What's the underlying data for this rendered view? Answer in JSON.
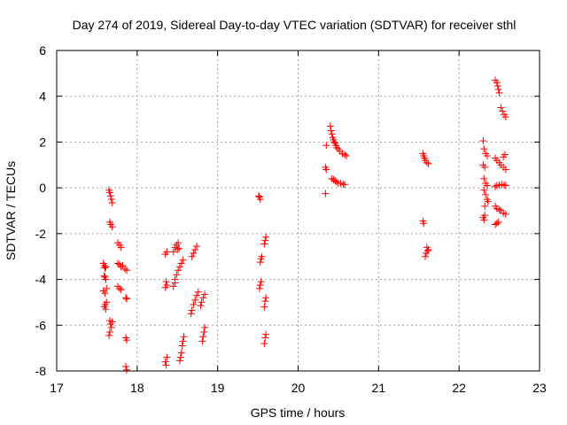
{
  "chart_data": {
    "type": "scatter",
    "title": "Day 274 of 2019, Sidereal Day-to-day VTEC variation (SDTVAR) for receiver sthl",
    "xlabel": "GPS time / hours",
    "ylabel": "SDTVAR / TECUs",
    "xlim": [
      17,
      23
    ],
    "ylim": [
      -8,
      6
    ],
    "xticks": [
      17,
      18,
      19,
      20,
      21,
      22,
      23
    ],
    "yticks": [
      -8,
      -6,
      -4,
      -2,
      0,
      2,
      4,
      6
    ],
    "grid": true,
    "marker": "+",
    "marker_color": "#ff0000",
    "series": [
      {
        "name": "SDTVAR",
        "points": [
          [
            17.58,
            -3.3
          ],
          [
            17.59,
            -3.4
          ],
          [
            17.6,
            -3.5
          ],
          [
            17.61,
            -3.45
          ],
          [
            17.6,
            -3.9
          ],
          [
            17.61,
            -4.0
          ],
          [
            17.59,
            -3.85
          ],
          [
            17.58,
            -4.5
          ],
          [
            17.6,
            -4.6
          ],
          [
            17.62,
            -4.4
          ],
          [
            17.6,
            -5.1
          ],
          [
            17.59,
            -5.2
          ],
          [
            17.61,
            -5.3
          ],
          [
            17.62,
            -5.0
          ],
          [
            17.65,
            -0.1
          ],
          [
            17.66,
            -0.2
          ],
          [
            17.67,
            -0.35
          ],
          [
            17.68,
            -0.5
          ],
          [
            17.69,
            -0.65
          ],
          [
            17.66,
            -1.5
          ],
          [
            17.67,
            -1.6
          ],
          [
            17.69,
            -1.7
          ],
          [
            17.66,
            -5.8
          ],
          [
            17.67,
            -5.95
          ],
          [
            17.68,
            -6.1
          ],
          [
            17.66,
            -6.3
          ],
          [
            17.65,
            -6.45
          ],
          [
            17.69,
            -5.85
          ],
          [
            17.76,
            -2.4
          ],
          [
            17.78,
            -2.5
          ],
          [
            17.8,
            -2.6
          ],
          [
            17.76,
            -3.3
          ],
          [
            17.78,
            -3.35
          ],
          [
            17.8,
            -3.45
          ],
          [
            17.82,
            -3.4
          ],
          [
            17.76,
            -4.3
          ],
          [
            17.78,
            -4.4
          ],
          [
            17.8,
            -4.45
          ],
          [
            17.85,
            -3.55
          ],
          [
            17.87,
            -3.6
          ],
          [
            17.86,
            -4.8
          ],
          [
            17.87,
            -4.85
          ],
          [
            17.86,
            -6.55
          ],
          [
            17.87,
            -6.65
          ],
          [
            17.86,
            -7.8
          ],
          [
            17.87,
            -7.95
          ],
          [
            18.35,
            -2.9
          ],
          [
            18.37,
            -2.8
          ],
          [
            18.36,
            -4.1
          ],
          [
            18.37,
            -4.25
          ],
          [
            18.35,
            -4.35
          ],
          [
            18.35,
            -7.6
          ],
          [
            18.36,
            -7.75
          ],
          [
            18.37,
            -7.4
          ],
          [
            18.45,
            -2.8
          ],
          [
            18.47,
            -2.6
          ],
          [
            18.49,
            -2.5
          ],
          [
            18.51,
            -2.4
          ],
          [
            18.5,
            -2.7
          ],
          [
            18.52,
            -2.65
          ],
          [
            18.47,
            -4.0
          ],
          [
            18.49,
            -3.8
          ],
          [
            18.51,
            -3.6
          ],
          [
            18.53,
            -3.45
          ],
          [
            18.55,
            -3.3
          ],
          [
            18.57,
            -3.15
          ],
          [
            18.45,
            -4.3
          ],
          [
            18.47,
            -4.15
          ],
          [
            18.56,
            -6.9
          ],
          [
            18.57,
            -6.7
          ],
          [
            18.58,
            -6.5
          ],
          [
            18.55,
            -7.2
          ],
          [
            18.54,
            -7.4
          ],
          [
            18.53,
            -7.55
          ],
          [
            18.68,
            -3.0
          ],
          [
            18.7,
            -2.85
          ],
          [
            18.72,
            -2.7
          ],
          [
            18.74,
            -2.55
          ],
          [
            18.7,
            -5.1
          ],
          [
            18.72,
            -4.9
          ],
          [
            18.74,
            -4.7
          ],
          [
            18.76,
            -4.55
          ],
          [
            18.68,
            -5.35
          ],
          [
            18.67,
            -5.5
          ],
          [
            18.82,
            -4.8
          ],
          [
            18.84,
            -4.65
          ],
          [
            18.8,
            -5.0
          ],
          [
            18.79,
            -5.15
          ],
          [
            18.84,
            -6.1
          ],
          [
            18.83,
            -6.3
          ],
          [
            18.82,
            -6.5
          ],
          [
            18.81,
            -6.7
          ],
          [
            19.52,
            -0.4
          ],
          [
            19.53,
            -0.5
          ],
          [
            19.51,
            -0.35
          ],
          [
            19.55,
            -3.0
          ],
          [
            19.54,
            -3.1
          ],
          [
            19.53,
            -3.25
          ],
          [
            19.54,
            -4.1
          ],
          [
            19.53,
            -4.25
          ],
          [
            19.52,
            -4.4
          ],
          [
            19.6,
            -2.15
          ],
          [
            19.59,
            -2.3
          ],
          [
            19.58,
            -2.45
          ],
          [
            19.6,
            -4.8
          ],
          [
            19.59,
            -4.95
          ],
          [
            19.58,
            -5.2
          ],
          [
            19.6,
            -6.4
          ],
          [
            19.59,
            -6.55
          ],
          [
            19.58,
            -6.8
          ],
          [
            20.35,
            1.85
          ],
          [
            20.34,
            0.9
          ],
          [
            20.35,
            0.8
          ],
          [
            20.34,
            -0.25
          ],
          [
            20.4,
            2.7
          ],
          [
            20.41,
            2.5
          ],
          [
            20.42,
            2.35
          ],
          [
            20.43,
            2.2
          ],
          [
            20.44,
            2.1
          ],
          [
            20.45,
            2.0
          ],
          [
            20.46,
            1.95
          ],
          [
            20.47,
            1.85
          ],
          [
            20.48,
            1.75
          ],
          [
            20.5,
            1.7
          ],
          [
            20.52,
            1.6
          ],
          [
            20.55,
            1.5
          ],
          [
            20.58,
            1.45
          ],
          [
            20.6,
            1.4
          ],
          [
            20.42,
            0.4
          ],
          [
            20.44,
            0.35
          ],
          [
            20.46,
            0.3
          ],
          [
            20.48,
            0.25
          ],
          [
            20.5,
            0.2
          ],
          [
            20.53,
            0.2
          ],
          [
            20.56,
            0.15
          ],
          [
            20.58,
            0.15
          ],
          [
            21.55,
            1.5
          ],
          [
            21.56,
            1.4
          ],
          [
            21.57,
            1.3
          ],
          [
            21.58,
            1.2
          ],
          [
            21.6,
            1.1
          ],
          [
            21.62,
            1.05
          ],
          [
            21.55,
            -1.45
          ],
          [
            21.56,
            -1.55
          ],
          [
            21.6,
            -2.6
          ],
          [
            21.61,
            -2.75
          ],
          [
            21.59,
            -2.85
          ],
          [
            21.58,
            -3.0
          ],
          [
            21.62,
            -2.7
          ],
          [
            22.3,
            2.05
          ],
          [
            22.31,
            1.7
          ],
          [
            22.33,
            1.5
          ],
          [
            22.35,
            1.4
          ],
          [
            22.3,
            1.0
          ],
          [
            22.32,
            0.9
          ],
          [
            22.31,
            0.4
          ],
          [
            22.33,
            0.2
          ],
          [
            22.35,
            0.1
          ],
          [
            22.31,
            -0.1
          ],
          [
            22.33,
            -0.3
          ],
          [
            22.35,
            -0.5
          ],
          [
            22.36,
            -0.6
          ],
          [
            22.32,
            -0.8
          ],
          [
            22.3,
            -1.3
          ],
          [
            22.31,
            -1.4
          ],
          [
            22.32,
            -1.2
          ],
          [
            22.45,
            4.7
          ],
          [
            22.47,
            4.6
          ],
          [
            22.48,
            4.45
          ],
          [
            22.49,
            4.3
          ],
          [
            22.5,
            4.15
          ],
          [
            22.52,
            3.5
          ],
          [
            22.54,
            3.35
          ],
          [
            22.56,
            3.2
          ],
          [
            22.58,
            3.1
          ],
          [
            22.45,
            1.3
          ],
          [
            22.47,
            1.2
          ],
          [
            22.5,
            1.1
          ],
          [
            22.52,
            1.0
          ],
          [
            22.55,
            0.9
          ],
          [
            22.58,
            0.8
          ],
          [
            22.55,
            1.35
          ],
          [
            22.57,
            1.45
          ],
          [
            22.45,
            0.05
          ],
          [
            22.47,
            0.1
          ],
          [
            22.5,
            0.12
          ],
          [
            22.53,
            0.15
          ],
          [
            22.56,
            0.12
          ],
          [
            22.58,
            0.1
          ],
          [
            22.45,
            -0.8
          ],
          [
            22.47,
            -0.9
          ],
          [
            22.5,
            -0.95
          ],
          [
            22.52,
            -1.0
          ],
          [
            22.55,
            -1.1
          ],
          [
            22.58,
            -1.15
          ],
          [
            22.45,
            -1.6
          ],
          [
            22.47,
            -1.55
          ],
          [
            22.49,
            -1.5
          ]
        ]
      }
    ]
  }
}
